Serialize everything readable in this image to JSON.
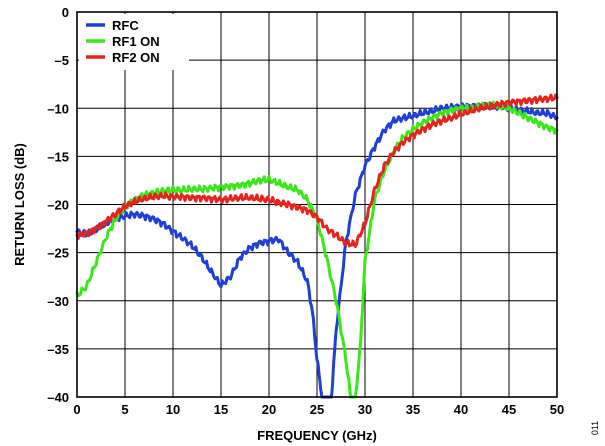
{
  "chart_data": {
    "type": "line",
    "title": "",
    "xlabel": "FREQUENCY (GHz)",
    "ylabel": "RETURN LOSS (dB)",
    "xlim": [
      0,
      50
    ],
    "ylim": [
      -40,
      0
    ],
    "xticks": [
      0,
      5,
      10,
      15,
      20,
      25,
      30,
      35,
      40,
      45,
      50
    ],
    "yticks": [
      0,
      -5,
      -10,
      -15,
      -20,
      -25,
      -30,
      -35,
      -40
    ],
    "xtick_labels": [
      "0",
      "5",
      "10",
      "15",
      "20",
      "25",
      "30",
      "35",
      "40",
      "45",
      "50"
    ],
    "ytick_labels": [
      "0",
      "–5",
      "–10",
      "–15",
      "–20",
      "–25",
      "–30",
      "–35",
      "–40"
    ],
    "grid": true,
    "legend_position": "top-left",
    "series": [
      {
        "name": "RFC",
        "color": "#1f3fd6",
        "x": [
          0,
          1,
          2,
          3,
          4,
          5,
          6,
          7,
          8,
          9,
          10,
          11,
          12,
          13,
          14,
          15,
          16,
          17,
          18,
          19,
          20,
          21,
          22,
          23,
          24,
          24.5,
          25,
          25.5,
          26,
          26.5,
          27,
          28,
          29,
          30,
          31,
          32,
          33,
          34,
          35,
          36,
          37,
          38,
          39,
          40,
          41,
          42,
          43,
          44,
          45,
          46,
          47,
          48,
          49,
          50
        ],
        "y": [
          -22.8,
          -23.1,
          -22.6,
          -22.0,
          -21.5,
          -21.2,
          -21.0,
          -21.2,
          -21.5,
          -22.0,
          -22.8,
          -23.5,
          -24.3,
          -25.5,
          -27.0,
          -28.4,
          -27.5,
          -25.5,
          -24.5,
          -24.0,
          -23.8,
          -23.6,
          -25.0,
          -26.0,
          -28.0,
          -31.0,
          -36.0,
          -40.0,
          -40.0,
          -40.0,
          -33.0,
          -24.0,
          -19.0,
          -16.0,
          -14.0,
          -12.3,
          -11.3,
          -11.0,
          -10.8,
          -10.5,
          -10.3,
          -10.0,
          -9.9,
          -9.8,
          -9.8,
          -9.7,
          -9.7,
          -9.8,
          -10.0,
          -10.2,
          -10.3,
          -10.5,
          -10.5,
          -11.0
        ]
      },
      {
        "name": "RF1 ON",
        "color": "#3ce61a",
        "x": [
          0,
          1,
          2,
          3,
          4,
          5,
          6,
          7,
          8,
          9,
          10,
          11,
          12,
          13,
          14,
          15,
          16,
          17,
          18,
          19,
          20,
          21,
          22,
          23,
          24,
          25,
          26,
          27,
          28,
          28.5,
          29,
          29.5,
          30,
          31,
          32,
          33,
          34,
          35,
          36,
          37,
          38,
          39,
          40,
          41,
          42,
          43,
          44,
          45,
          46,
          47,
          48,
          49,
          50
        ],
        "y": [
          -29.5,
          -28.5,
          -26.0,
          -23.5,
          -21.5,
          -20.2,
          -19.5,
          -19.0,
          -18.8,
          -18.6,
          -18.5,
          -18.5,
          -18.4,
          -18.4,
          -18.3,
          -18.2,
          -18.1,
          -18.0,
          -17.8,
          -17.5,
          -17.4,
          -17.8,
          -18.2,
          -18.5,
          -19.5,
          -21.5,
          -25.5,
          -30.0,
          -36.0,
          -40.0,
          -40.0,
          -35.0,
          -26.0,
          -19.5,
          -16.5,
          -14.5,
          -13.0,
          -12.2,
          -11.5,
          -11.0,
          -10.5,
          -10.2,
          -10.0,
          -10.0,
          -9.8,
          -9.7,
          -9.8,
          -10.0,
          -10.5,
          -11.0,
          -11.5,
          -12.0,
          -12.3
        ]
      },
      {
        "name": "RF2 ON",
        "color": "#e6231c",
        "x": [
          0,
          1,
          2,
          3,
          4,
          5,
          6,
          7,
          8,
          9,
          10,
          11,
          12,
          13,
          14,
          15,
          16,
          17,
          18,
          19,
          20,
          21,
          22,
          23,
          24,
          25,
          26,
          27,
          28,
          29,
          30,
          31,
          32,
          33,
          34,
          35,
          36,
          37,
          38,
          39,
          40,
          41,
          42,
          43,
          44,
          45,
          46,
          47,
          48,
          49,
          50
        ],
        "y": [
          -23.2,
          -23.0,
          -22.5,
          -21.8,
          -21.0,
          -20.2,
          -19.7,
          -19.4,
          -19.2,
          -19.1,
          -19.2,
          -19.2,
          -19.3,
          -19.3,
          -19.4,
          -19.5,
          -19.4,
          -19.3,
          -19.3,
          -19.4,
          -19.5,
          -19.8,
          -20.0,
          -20.3,
          -20.6,
          -21.3,
          -22.5,
          -23.2,
          -24.0,
          -24.2,
          -22.0,
          -18.5,
          -16.0,
          -14.5,
          -13.5,
          -12.8,
          -12.2,
          -11.7,
          -11.3,
          -11.0,
          -10.6,
          -10.3,
          -10.0,
          -9.8,
          -9.6,
          -9.4,
          -9.3,
          -9.2,
          -9.1,
          -9.0,
          -8.9
        ]
      }
    ]
  },
  "figure_id": "011"
}
